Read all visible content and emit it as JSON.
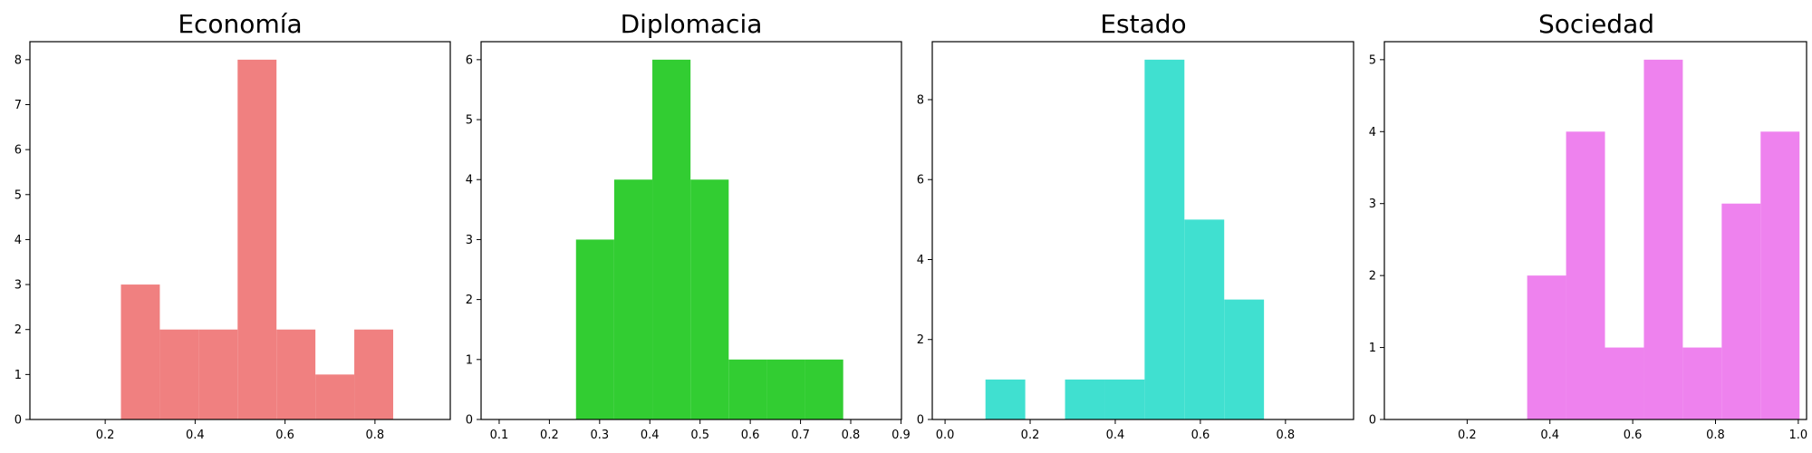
{
  "chart_data": [
    {
      "type": "bar",
      "title": "Economía",
      "color": "#f08080",
      "xlim": [
        0.0325,
        0.9675
      ],
      "ylim": [
        0,
        8.4
      ],
      "xticks": [
        0.2,
        0.4,
        0.6,
        0.8
      ],
      "xtick_labels": [
        "0.2",
        "0.4",
        "0.6",
        "0.8"
      ],
      "yticks": [
        0,
        1,
        2,
        3,
        4,
        5,
        6,
        7,
        8
      ],
      "ytick_labels": [
        "0",
        "1",
        "2",
        "3",
        "4",
        "5",
        "6",
        "7",
        "8"
      ],
      "bins": [
        {
          "x0": 0.235,
          "x1": 0.3215,
          "count": 3
        },
        {
          "x0": 0.3215,
          "x1": 0.408,
          "count": 2
        },
        {
          "x0": 0.408,
          "x1": 0.4945,
          "count": 2
        },
        {
          "x0": 0.4945,
          "x1": 0.581,
          "count": 8
        },
        {
          "x0": 0.581,
          "x1": 0.6675,
          "count": 2
        },
        {
          "x0": 0.6675,
          "x1": 0.754,
          "count": 1
        },
        {
          "x0": 0.754,
          "x1": 0.8405,
          "count": 2
        }
      ]
    },
    {
      "type": "bar",
      "title": "Diplomacia",
      "color": "#32cd32",
      "xlim": [
        0.064,
        0.901
      ],
      "ylim": [
        0,
        6.3
      ],
      "xticks": [
        0.1,
        0.2,
        0.3,
        0.4,
        0.5,
        0.6,
        0.7,
        0.8,
        0.9
      ],
      "xtick_labels": [
        "0.1",
        "0.2",
        "0.3",
        "0.4",
        "0.5",
        "0.6",
        "0.7",
        "0.8",
        "0.9"
      ],
      "yticks": [
        0,
        1,
        2,
        3,
        4,
        5,
        6
      ],
      "ytick_labels": [
        "0",
        "1",
        "2",
        "3",
        "4",
        "5",
        "6"
      ],
      "bins": [
        {
          "x0": 0.253,
          "x1": 0.329,
          "count": 3
        },
        {
          "x0": 0.329,
          "x1": 0.405,
          "count": 4
        },
        {
          "x0": 0.405,
          "x1": 0.481,
          "count": 6
        },
        {
          "x0": 0.481,
          "x1": 0.557,
          "count": 4
        },
        {
          "x0": 0.557,
          "x1": 0.633,
          "count": 1
        },
        {
          "x0": 0.633,
          "x1": 0.709,
          "count": 1
        },
        {
          "x0": 0.709,
          "x1": 0.785,
          "count": 1
        }
      ]
    },
    {
      "type": "bar",
      "title": "Estado",
      "color": "#40e0d0",
      "xlim": [
        -0.03,
        0.96
      ],
      "ylim": [
        0,
        9.45
      ],
      "xticks": [
        0.0,
        0.2,
        0.4,
        0.6,
        0.8
      ],
      "xtick_labels": [
        "0.0",
        "0.2",
        "0.4",
        "0.6",
        "0.8"
      ],
      "yticks": [
        0,
        2,
        4,
        6,
        8
      ],
      "ytick_labels": [
        "0",
        "2",
        "4",
        "6",
        "8"
      ],
      "bins": [
        {
          "x0": 0.095,
          "x1": 0.1885,
          "count": 1
        },
        {
          "x0": 0.1885,
          "x1": 0.282,
          "count": 0
        },
        {
          "x0": 0.282,
          "x1": 0.3755,
          "count": 1
        },
        {
          "x0": 0.3755,
          "x1": 0.469,
          "count": 1
        },
        {
          "x0": 0.469,
          "x1": 0.5625,
          "count": 9
        },
        {
          "x0": 0.5625,
          "x1": 0.656,
          "count": 5
        },
        {
          "x0": 0.656,
          "x1": 0.7495,
          "count": 3
        }
      ]
    },
    {
      "type": "bar",
      "title": "Sociedad",
      "color": "#ee82ee",
      "xlim": [
        0.0,
        1.02
      ],
      "ylim": [
        0,
        5.25
      ],
      "xticks": [
        0.2,
        0.4,
        0.6,
        0.8,
        1.0
      ],
      "xtick_labels": [
        "0.2",
        "0.4",
        "0.6",
        "0.8",
        "1.0"
      ],
      "yticks": [
        0,
        1,
        2,
        3,
        4,
        5
      ],
      "ytick_labels": [
        "0",
        "1",
        "2",
        "3",
        "4",
        "5"
      ],
      "bins": [
        {
          "x0": 0.345,
          "x1": 0.439,
          "count": 2
        },
        {
          "x0": 0.439,
          "x1": 0.533,
          "count": 4
        },
        {
          "x0": 0.533,
          "x1": 0.627,
          "count": 1
        },
        {
          "x0": 0.627,
          "x1": 0.721,
          "count": 5
        },
        {
          "x0": 0.721,
          "x1": 0.815,
          "count": 1
        },
        {
          "x0": 0.815,
          "x1": 0.909,
          "count": 3
        },
        {
          "x0": 0.909,
          "x1": 1.003,
          "count": 4
        }
      ]
    }
  ]
}
